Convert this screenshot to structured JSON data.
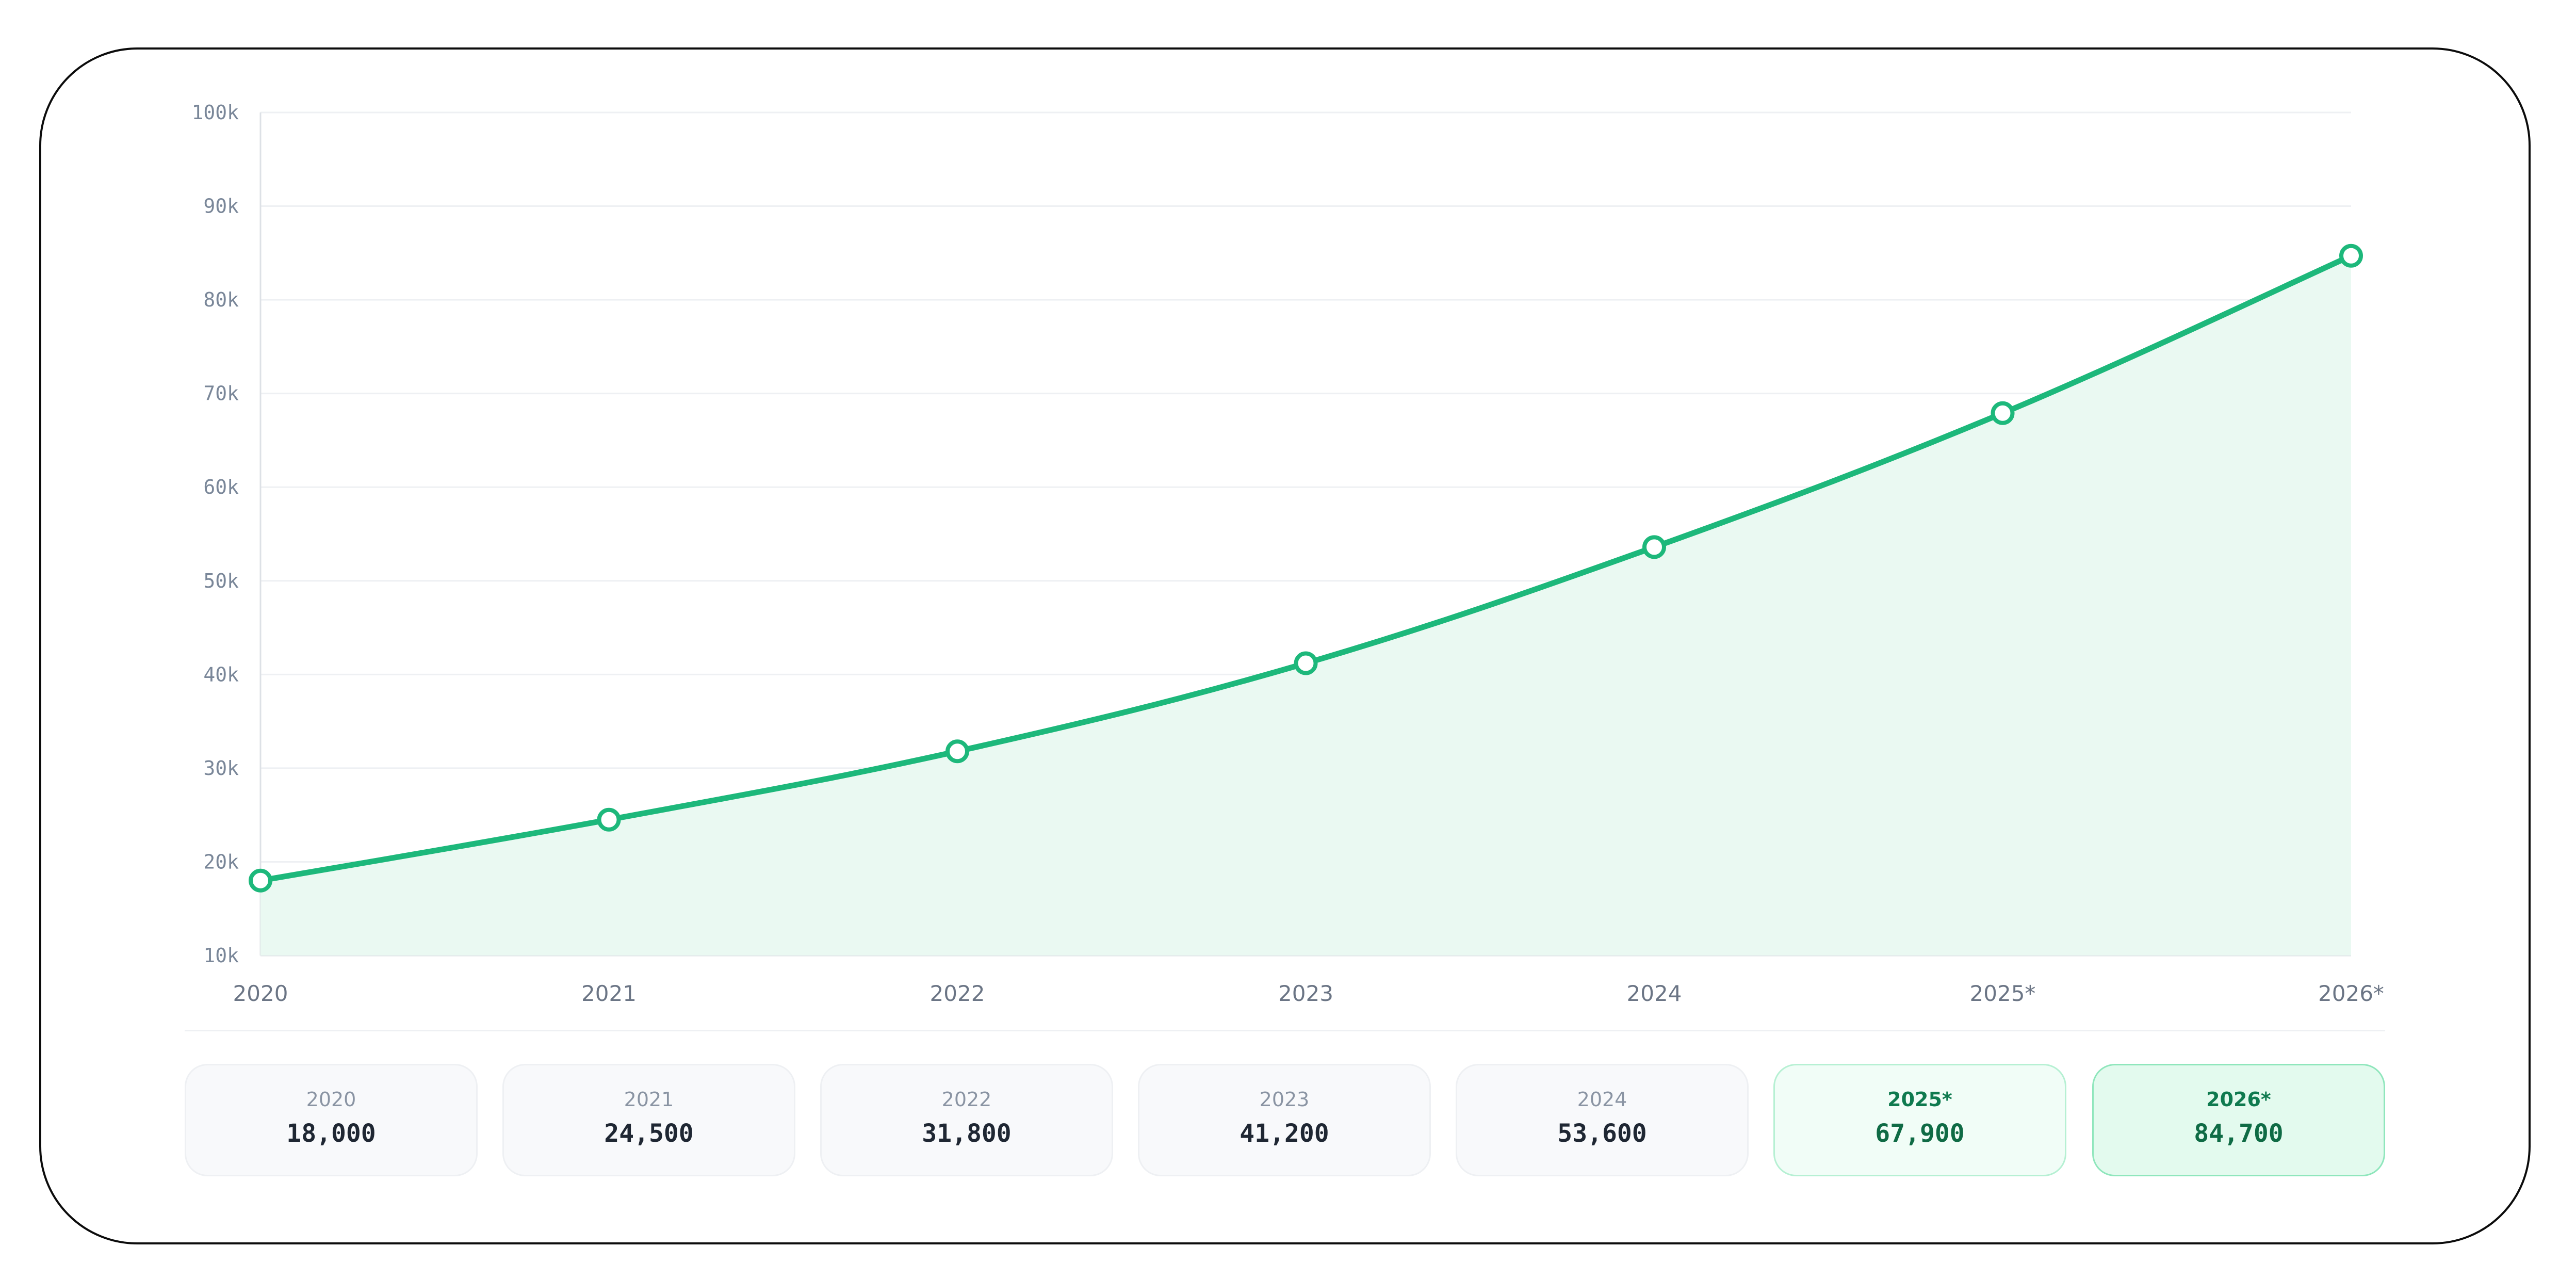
{
  "chart_data": {
    "type": "area",
    "title": "",
    "xlabel": "",
    "ylabel": "",
    "categories": [
      "2020",
      "2021",
      "2022",
      "2023",
      "2024",
      "2025*",
      "2026*"
    ],
    "series": [
      {
        "values": [
          18000,
          24500,
          31800,
          41200,
          53600,
          67900,
          84700
        ]
      }
    ],
    "ylim": [
      10000,
      100000
    ],
    "yticks": [
      {
        "value": 10000,
        "label": "10k"
      },
      {
        "value": 20000,
        "label": "20k"
      },
      {
        "value": 30000,
        "label": "30k"
      },
      {
        "value": 40000,
        "label": "40k"
      },
      {
        "value": 50000,
        "label": "50k"
      },
      {
        "value": 60000,
        "label": "60k"
      },
      {
        "value": 70000,
        "label": "70k"
      },
      {
        "value": 80000,
        "label": "80k"
      },
      {
        "value": 90000,
        "label": "90k"
      },
      {
        "value": 100000,
        "label": "100k"
      }
    ],
    "grid": true,
    "legend": "none",
    "colors": {
      "line": "#1db87b",
      "fill": "#eaf9f2",
      "marker_fill": "#ffffff"
    }
  },
  "cards": [
    {
      "year": "2020",
      "value": "18,000",
      "forecast": false
    },
    {
      "year": "2021",
      "value": "24,500",
      "forecast": false
    },
    {
      "year": "2022",
      "value": "31,800",
      "forecast": false
    },
    {
      "year": "2023",
      "value": "41,200",
      "forecast": false
    },
    {
      "year": "2024",
      "value": "53,600",
      "forecast": false
    },
    {
      "year": "2025*",
      "value": "67,900",
      "forecast": true
    },
    {
      "year": "2026*",
      "value": "84,700",
      "forecast": true
    }
  ]
}
